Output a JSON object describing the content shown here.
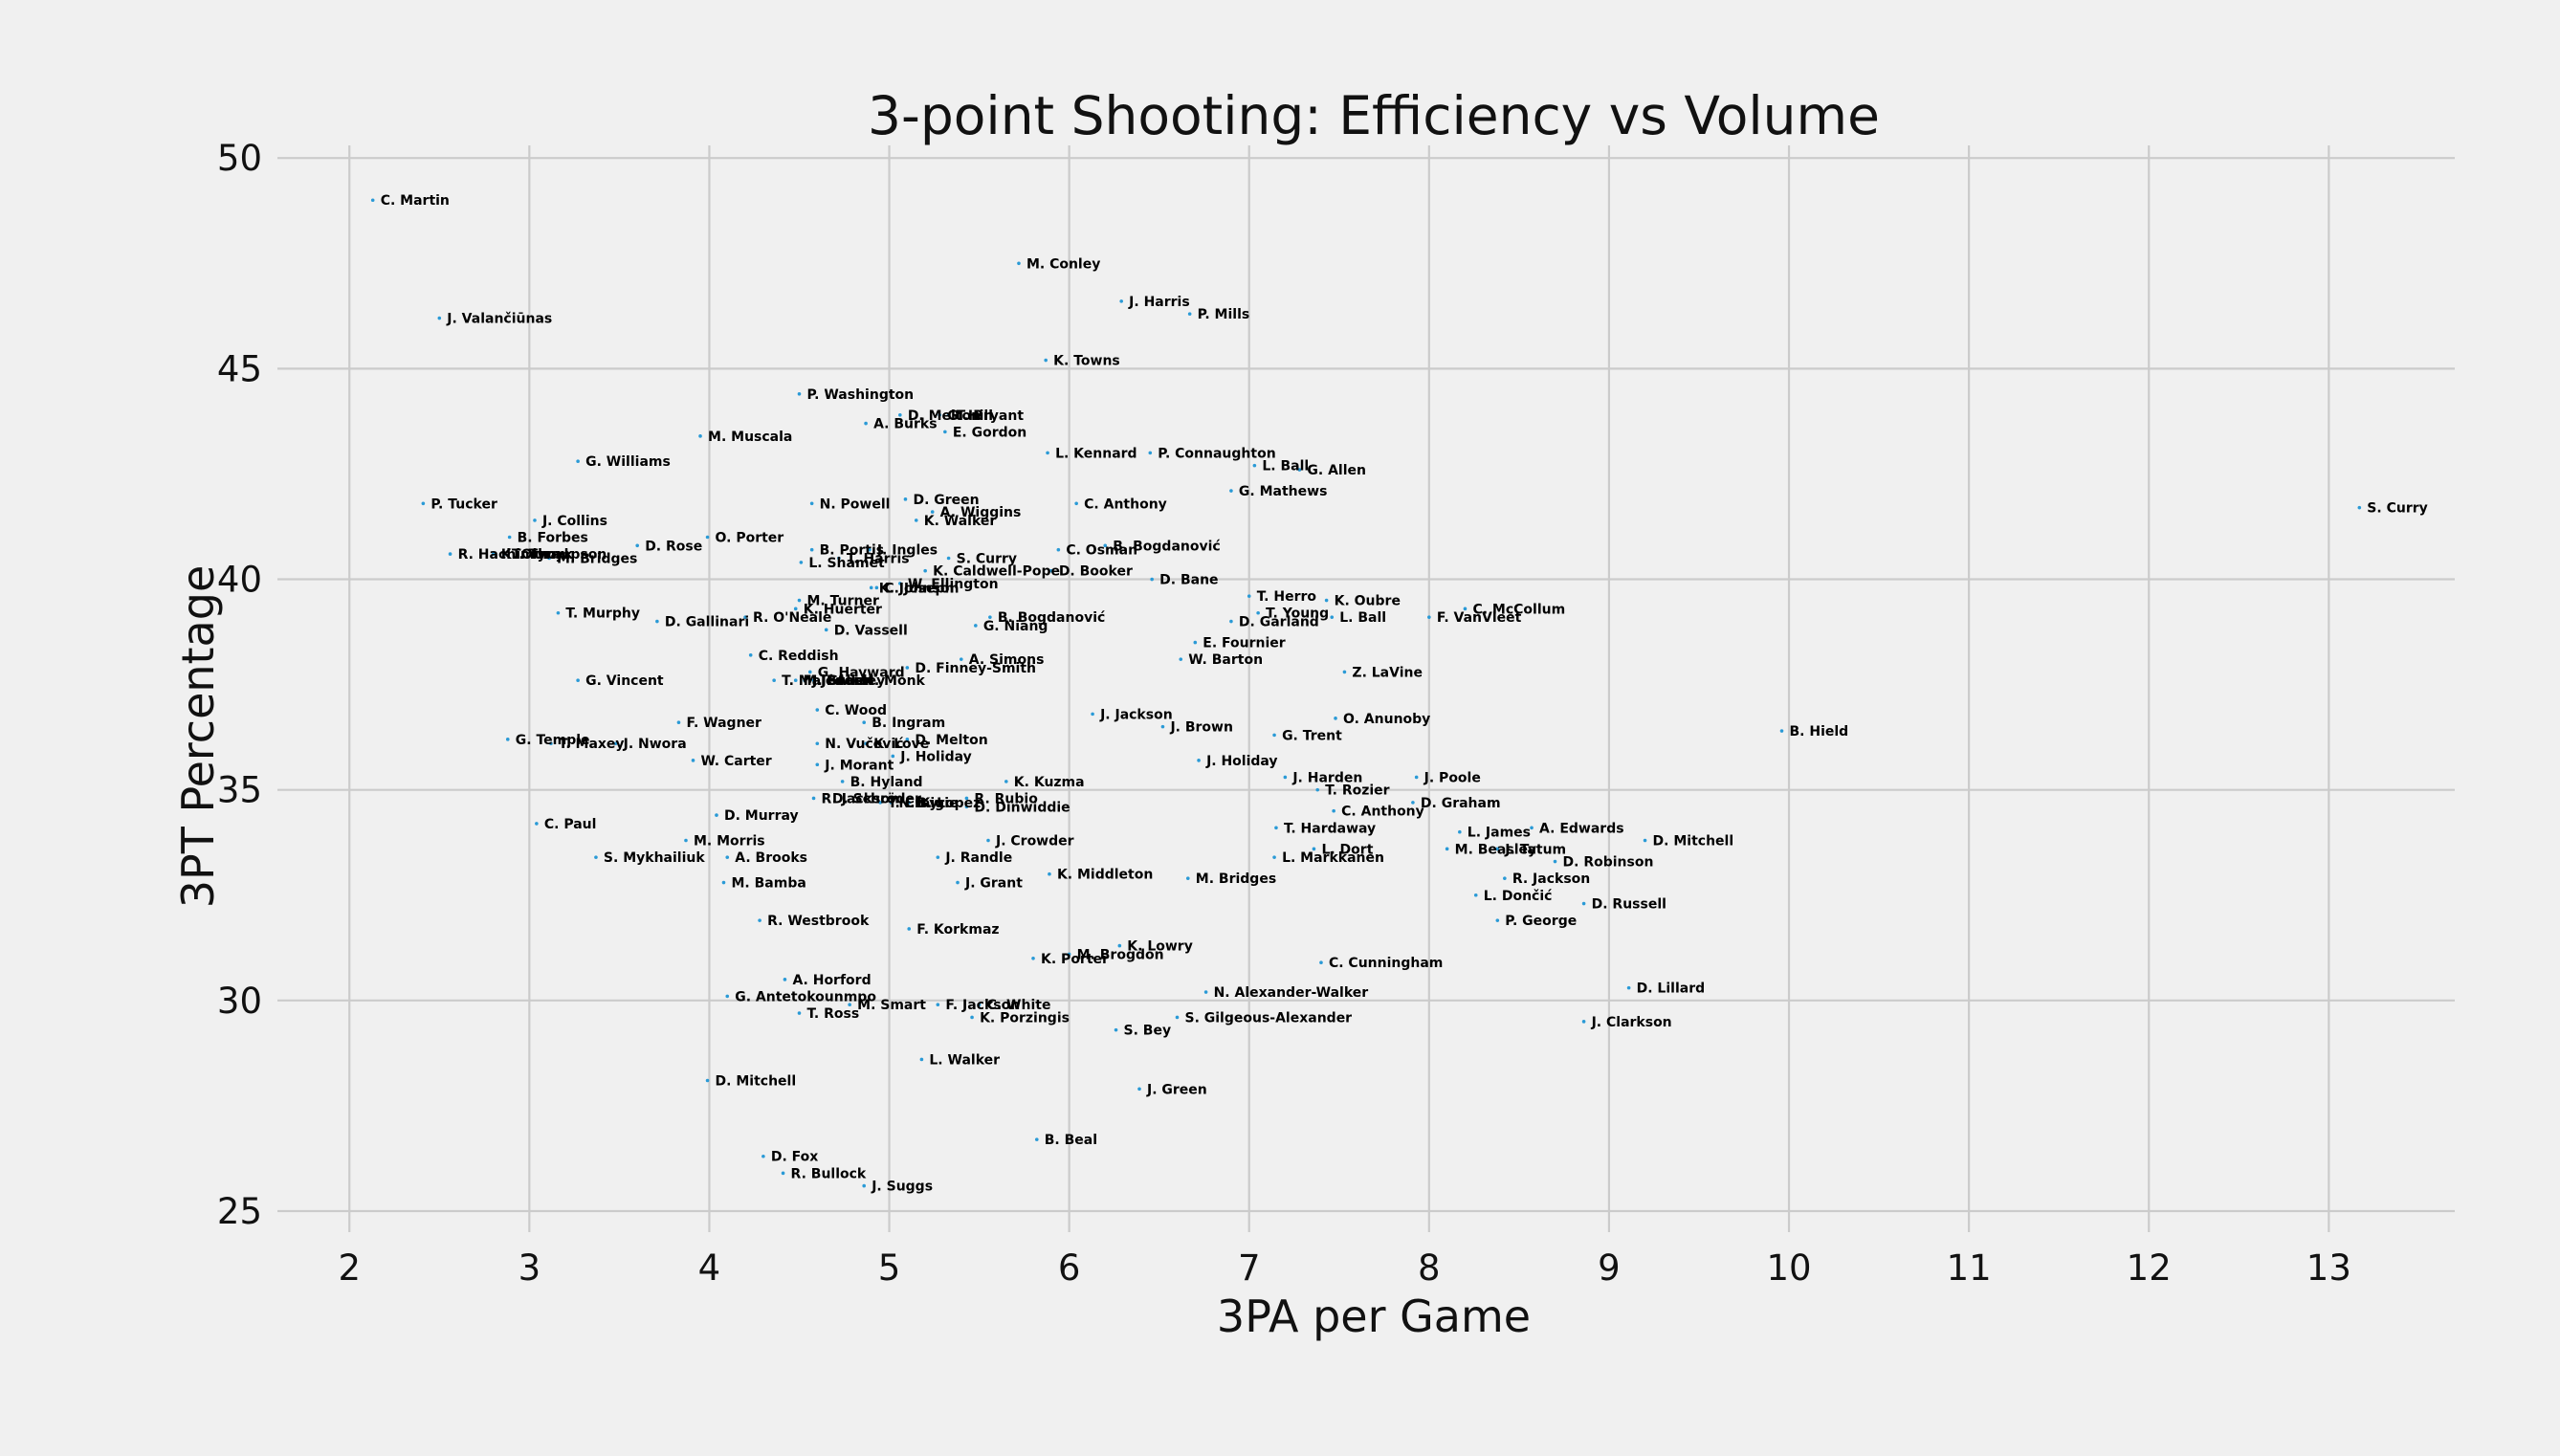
{
  "chart_data": {
    "type": "scatter",
    "title": "3-point Shooting: Efficiency vs Volume",
    "xlabel": "3PA per Game",
    "ylabel": "3PT Percentage",
    "xlim": [
      1.6,
      13.7
    ],
    "ylim": [
      24.5,
      50.3
    ],
    "xticks": [
      2,
      3,
      4,
      5,
      6,
      7,
      8,
      9,
      10,
      11,
      12,
      13
    ],
    "yticks": [
      25,
      30,
      35,
      40,
      45,
      50
    ],
    "grid": true,
    "marker_color": "#2a9ad6",
    "points": [
      {
        "name": "C. Martin",
        "x": 2.13,
        "y": 49.0
      },
      {
        "name": "M. Conley",
        "x": 5.72,
        "y": 47.5
      },
      {
        "name": "J. Harris",
        "x": 6.29,
        "y": 46.6
      },
      {
        "name": "P. Mills",
        "x": 6.67,
        "y": 46.3
      },
      {
        "name": "J. Valančiūnas",
        "x": 2.5,
        "y": 46.2
      },
      {
        "name": "K. Towns",
        "x": 5.87,
        "y": 45.2
      },
      {
        "name": "P. Washington",
        "x": 4.5,
        "y": 44.4
      },
      {
        "name": "D. Melton",
        "x": 5.06,
        "y": 43.9
      },
      {
        "name": "G. Hill",
        "x": 5.28,
        "y": 43.9
      },
      {
        "name": "T. Bryant",
        "x": 5.33,
        "y": 43.9
      },
      {
        "name": "A. Burks",
        "x": 4.87,
        "y": 43.7
      },
      {
        "name": "E. Gordon",
        "x": 5.31,
        "y": 43.5
      },
      {
        "name": "M. Muscala",
        "x": 3.95,
        "y": 43.4
      },
      {
        "name": "L. Kennard",
        "x": 5.88,
        "y": 43.0
      },
      {
        "name": "P. Connaughton",
        "x": 6.45,
        "y": 43.0
      },
      {
        "name": "G. Williams",
        "x": 3.27,
        "y": 42.8
      },
      {
        "name": "L. Ball",
        "x": 7.03,
        "y": 42.7
      },
      {
        "name": "G. Allen",
        "x": 7.28,
        "y": 42.6
      },
      {
        "name": "G. Mathews",
        "x": 6.9,
        "y": 42.1
      },
      {
        "name": "D. Green",
        "x": 5.09,
        "y": 41.9
      },
      {
        "name": "P. Tucker",
        "x": 2.41,
        "y": 41.8
      },
      {
        "name": "N. Powell",
        "x": 4.57,
        "y": 41.8
      },
      {
        "name": "C. Anthony",
        "x": 6.04,
        "y": 41.8
      },
      {
        "name": "A. Wiggins",
        "x": 5.24,
        "y": 41.6
      },
      {
        "name": "S. Curry",
        "x": 13.17,
        "y": 41.7
      },
      {
        "name": "J. Collins",
        "x": 3.03,
        "y": 41.4
      },
      {
        "name": "K. Walker",
        "x": 5.15,
        "y": 41.4
      },
      {
        "name": "O. Porter",
        "x": 3.99,
        "y": 41.0
      },
      {
        "name": "B. Forbes",
        "x": 2.89,
        "y": 41.0
      },
      {
        "name": "D. Rose",
        "x": 3.6,
        "y": 40.8
      },
      {
        "name": "B. Bogdanović",
        "x": 6.2,
        "y": 40.8
      },
      {
        "name": "J. Ingles",
        "x": 4.89,
        "y": 40.7
      },
      {
        "name": "B. Portis",
        "x": 4.57,
        "y": 40.7
      },
      {
        "name": "C. Osman",
        "x": 5.94,
        "y": 40.7
      },
      {
        "name": "R. Hachimura",
        "x": 2.56,
        "y": 40.6
      },
      {
        "name": "K. Olynyk",
        "x": 2.8,
        "y": 40.6
      },
      {
        "name": "T. Thompson",
        "x": 2.86,
        "y": 40.6
      },
      {
        "name": "M. Bridges",
        "x": 3.11,
        "y": 40.5
      },
      {
        "name": "S. Curry",
        "x": 5.33,
        "y": 40.5
      },
      {
        "name": "T. Harris",
        "x": 4.72,
        "y": 40.5
      },
      {
        "name": "L. Shamet",
        "x": 4.51,
        "y": 40.4
      },
      {
        "name": "K. Caldwell-Pope",
        "x": 5.2,
        "y": 40.2
      },
      {
        "name": "D. Booker",
        "x": 5.9,
        "y": 40.2
      },
      {
        "name": "W. Ellington",
        "x": 5.06,
        "y": 39.9
      },
      {
        "name": "D. Bane",
        "x": 6.46,
        "y": 40.0
      },
      {
        "name": "K. Johnson",
        "x": 4.9,
        "y": 39.8
      },
      {
        "name": "C. Joseph",
        "x": 4.93,
        "y": 39.8
      },
      {
        "name": "T. Herro",
        "x": 7.0,
        "y": 39.6
      },
      {
        "name": "M. Turner",
        "x": 4.5,
        "y": 39.5
      },
      {
        "name": "K. Oubre",
        "x": 7.43,
        "y": 39.5
      },
      {
        "name": "C. McCollum",
        "x": 8.2,
        "y": 39.3
      },
      {
        "name": "K. Huerter",
        "x": 4.48,
        "y": 39.3
      },
      {
        "name": "T. Young",
        "x": 7.05,
        "y": 39.2
      },
      {
        "name": "T. Murphy",
        "x": 3.16,
        "y": 39.2
      },
      {
        "name": "L. Ball",
        "x": 7.46,
        "y": 39.1
      },
      {
        "name": "F. VanVleet",
        "x": 8.0,
        "y": 39.1
      },
      {
        "name": "R. O'Neale",
        "x": 4.2,
        "y": 39.1
      },
      {
        "name": "B. Bogdanović",
        "x": 5.56,
        "y": 39.1
      },
      {
        "name": "D. Garland",
        "x": 6.9,
        "y": 39.0
      },
      {
        "name": "D. Gallinari",
        "x": 3.71,
        "y": 39.0
      },
      {
        "name": "G. Niang",
        "x": 5.48,
        "y": 38.9
      },
      {
        "name": "D. Vassell",
        "x": 4.65,
        "y": 38.8
      },
      {
        "name": "E. Fournier",
        "x": 6.7,
        "y": 38.5
      },
      {
        "name": "C. Reddish",
        "x": 4.23,
        "y": 38.2
      },
      {
        "name": "A. Simons",
        "x": 5.4,
        "y": 38.1
      },
      {
        "name": "W. Barton",
        "x": 6.62,
        "y": 38.1
      },
      {
        "name": "D. Finney-Smith",
        "x": 5.1,
        "y": 37.9
      },
      {
        "name": "G. Hayward",
        "x": 4.56,
        "y": 37.8
      },
      {
        "name": "Z. LaVine",
        "x": 7.53,
        "y": 37.8
      },
      {
        "name": "G. Vincent",
        "x": 3.27,
        "y": 37.6
      },
      {
        "name": "T. Maledon",
        "x": 4.36,
        "y": 37.6
      },
      {
        "name": "M. Beasley",
        "x": 4.48,
        "y": 37.6
      },
      {
        "name": "J. Green",
        "x": 4.53,
        "y": 37.6
      },
      {
        "name": "J. Allen",
        "x": 4.58,
        "y": 37.6
      },
      {
        "name": "M. Monk",
        "x": 4.8,
        "y": 37.6
      },
      {
        "name": "C. Wood",
        "x": 4.6,
        "y": 36.9
      },
      {
        "name": "J. Jackson",
        "x": 6.13,
        "y": 36.8
      },
      {
        "name": "O. Anunoby",
        "x": 7.48,
        "y": 36.7
      },
      {
        "name": "B. Ingram",
        "x": 4.86,
        "y": 36.6
      },
      {
        "name": "F. Wagner",
        "x": 3.83,
        "y": 36.6
      },
      {
        "name": "J. Brown",
        "x": 6.52,
        "y": 36.5
      },
      {
        "name": "B. Hield",
        "x": 9.96,
        "y": 36.4
      },
      {
        "name": "G. Trent",
        "x": 7.14,
        "y": 36.3
      },
      {
        "name": "D. Melton",
        "x": 5.1,
        "y": 36.2
      },
      {
        "name": "G. Temple",
        "x": 2.88,
        "y": 36.2
      },
      {
        "name": "T. Maxey",
        "x": 3.12,
        "y": 36.1
      },
      {
        "name": "J. Nwora",
        "x": 3.48,
        "y": 36.1
      },
      {
        "name": "N. Vučević",
        "x": 4.6,
        "y": 36.1
      },
      {
        "name": "K. Love",
        "x": 4.87,
        "y": 36.1
      },
      {
        "name": "J. Holiday",
        "x": 5.02,
        "y": 35.8
      },
      {
        "name": "J. Holiday",
        "x": 6.72,
        "y": 35.7
      },
      {
        "name": "W. Carter",
        "x": 3.91,
        "y": 35.7
      },
      {
        "name": "J. Morant",
        "x": 4.6,
        "y": 35.6
      },
      {
        "name": "J. Harden",
        "x": 7.2,
        "y": 35.3
      },
      {
        "name": "J. Poole",
        "x": 7.93,
        "y": 35.3
      },
      {
        "name": "B. Hyland",
        "x": 4.74,
        "y": 35.2
      },
      {
        "name": "K. Kuzma",
        "x": 5.65,
        "y": 35.2
      },
      {
        "name": "T. Rozier",
        "x": 7.38,
        "y": 35.0
      },
      {
        "name": "R. Jackson",
        "x": 4.58,
        "y": 34.8
      },
      {
        "name": "D. Schröder",
        "x": 4.64,
        "y": 34.8
      },
      {
        "name": "R. Rubio",
        "x": 5.43,
        "y": 34.8
      },
      {
        "name": "T. Craig",
        "x": 4.95,
        "y": 34.7
      },
      {
        "name": "N. Kyrie",
        "x": 5.01,
        "y": 34.7
      },
      {
        "name": "B. Lopez",
        "x": 5.11,
        "y": 34.7
      },
      {
        "name": "D. Dinwiddie",
        "x": 5.43,
        "y": 34.6
      },
      {
        "name": "D. Graham",
        "x": 7.91,
        "y": 34.7
      },
      {
        "name": "C. Anthony",
        "x": 7.47,
        "y": 34.5
      },
      {
        "name": "D. Murray",
        "x": 4.04,
        "y": 34.4
      },
      {
        "name": "C. Paul",
        "x": 3.04,
        "y": 34.2
      },
      {
        "name": "T. Hardaway",
        "x": 7.15,
        "y": 34.1
      },
      {
        "name": "A. Edwards",
        "x": 8.57,
        "y": 34.1
      },
      {
        "name": "L. James",
        "x": 8.17,
        "y": 34.0
      },
      {
        "name": "J. Crowder",
        "x": 5.55,
        "y": 33.8
      },
      {
        "name": "M. Morris",
        "x": 3.87,
        "y": 33.8
      },
      {
        "name": "D. Mitchell",
        "x": 9.2,
        "y": 33.8
      },
      {
        "name": "L. Dort",
        "x": 7.36,
        "y": 33.6
      },
      {
        "name": "M. Beasley",
        "x": 8.1,
        "y": 33.6
      },
      {
        "name": "J. Tatum",
        "x": 8.38,
        "y": 33.6
      },
      {
        "name": "S. Mykhailiuk",
        "x": 3.37,
        "y": 33.4
      },
      {
        "name": "A. Brooks",
        "x": 4.1,
        "y": 33.4
      },
      {
        "name": "L. Markkanen",
        "x": 7.14,
        "y": 33.4
      },
      {
        "name": "J. Randle",
        "x": 5.27,
        "y": 33.4
      },
      {
        "name": "D. Robinson",
        "x": 8.7,
        "y": 33.3
      },
      {
        "name": "K. Middleton",
        "x": 5.89,
        "y": 33.0
      },
      {
        "name": "M. Bridges",
        "x": 6.66,
        "y": 32.9
      },
      {
        "name": "R. Jackson",
        "x": 8.42,
        "y": 32.9
      },
      {
        "name": "J. Grant",
        "x": 5.38,
        "y": 32.8
      },
      {
        "name": "M. Bamba",
        "x": 4.08,
        "y": 32.8
      },
      {
        "name": "L. Dončić",
        "x": 8.26,
        "y": 32.5
      },
      {
        "name": "D. Russell",
        "x": 8.86,
        "y": 32.3
      },
      {
        "name": "P. George",
        "x": 8.38,
        "y": 31.9
      },
      {
        "name": "R. Westbrook",
        "x": 4.28,
        "y": 31.9
      },
      {
        "name": "F. Korkmaz",
        "x": 5.11,
        "y": 31.7
      },
      {
        "name": "K. Lowry",
        "x": 6.28,
        "y": 31.3
      },
      {
        "name": "M. Brogdon",
        "x": 6.0,
        "y": 31.1
      },
      {
        "name": "K. Porter",
        "x": 5.8,
        "y": 31.0
      },
      {
        "name": "C. Cunningham",
        "x": 7.4,
        "y": 30.9
      },
      {
        "name": "A. Horford",
        "x": 4.42,
        "y": 30.5
      },
      {
        "name": "D. Lillard",
        "x": 9.11,
        "y": 30.3
      },
      {
        "name": "N. Alexander-Walker",
        "x": 6.76,
        "y": 30.2
      },
      {
        "name": "G. Antetokounmpo",
        "x": 4.1,
        "y": 30.1
      },
      {
        "name": "M. Smart",
        "x": 4.78,
        "y": 29.9
      },
      {
        "name": "F. Jackson",
        "x": 5.27,
        "y": 29.9
      },
      {
        "name": "C. White",
        "x": 5.5,
        "y": 29.9
      },
      {
        "name": "T. Ross",
        "x": 4.5,
        "y": 29.7
      },
      {
        "name": "S. Gilgeous-Alexander",
        "x": 6.6,
        "y": 29.6
      },
      {
        "name": "K. Porzingis",
        "x": 5.46,
        "y": 29.6
      },
      {
        "name": "S. Bey",
        "x": 6.26,
        "y": 29.3
      },
      {
        "name": "J. Clarkson",
        "x": 8.86,
        "y": 29.5
      },
      {
        "name": "L. Walker",
        "x": 5.18,
        "y": 28.6
      },
      {
        "name": "D. Mitchell",
        "x": 3.99,
        "y": 28.1
      },
      {
        "name": "J. Green",
        "x": 6.39,
        "y": 27.9
      },
      {
        "name": "B. Beal",
        "x": 5.82,
        "y": 26.7
      },
      {
        "name": "D. Fox",
        "x": 4.3,
        "y": 26.3
      },
      {
        "name": "R. Bullock",
        "x": 4.41,
        "y": 25.9
      },
      {
        "name": "J. Suggs",
        "x": 4.86,
        "y": 25.6
      }
    ]
  }
}
